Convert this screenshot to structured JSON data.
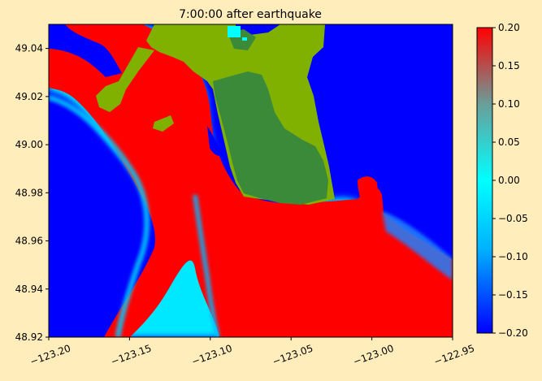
{
  "chart_data": {
    "type": "heatmap",
    "title": "7:00:00 after earthquake",
    "xlabel": "",
    "ylabel": "",
    "xlim": [
      -123.2,
      -122.95
    ],
    "ylim": [
      48.92,
      49.05
    ],
    "x_ticks": [
      -123.2,
      -123.15,
      -123.1,
      -123.05,
      -123.0,
      -122.95
    ],
    "x_tick_labels": [
      "−123.20",
      "−123.15",
      "−123.10",
      "−123.05",
      "−123.00",
      "−122.95"
    ],
    "y_ticks": [
      48.92,
      48.94,
      48.96,
      48.98,
      49.0,
      49.02,
      49.04
    ],
    "y_tick_labels": [
      "48.92",
      "48.94",
      "48.96",
      "48.98",
      "49.00",
      "49.02",
      "49.04"
    ],
    "colorbar": {
      "range": [
        -0.2,
        0.2
      ],
      "ticks": [
        -0.2,
        -0.15,
        -0.1,
        -0.05,
        0.0,
        0.05,
        0.1,
        0.15,
        0.2
      ],
      "tick_labels": [
        "−0.20",
        "−0.15",
        "−0.10",
        "−0.05",
        "0.00",
        "0.05",
        "0.10",
        "0.15",
        "0.20"
      ],
      "colors": [
        "#0000ff",
        "#00c8ff",
        "#00ffff",
        "#6a9e9a",
        "#ff0000"
      ]
    },
    "land_colors": {
      "low_land": "#80b000",
      "high_land": "#3a8a3a"
    },
    "background": "#ffeebb"
  }
}
